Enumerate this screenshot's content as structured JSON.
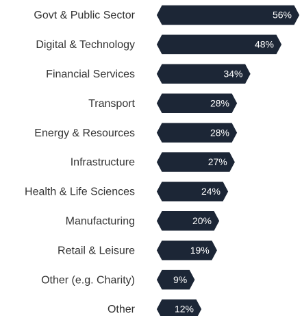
{
  "chart_data": {
    "type": "bar",
    "orientation": "horizontal",
    "color": "#1c2636",
    "categories": [
      "Govt & Public Sector",
      "Digital & Technology",
      "Financial Services",
      "Transport",
      "Energy & Resources",
      "Infrastructure",
      "Health & Life Sciences",
      "Manufacturing",
      "Retail & Leisure",
      "Other (e.g. Charity)",
      "Other"
    ],
    "values": [
      56,
      48,
      34,
      28,
      28,
      27,
      24,
      20,
      19,
      9,
      12
    ],
    "value_labels": [
      "56%",
      "48%",
      "34%",
      "28%",
      "28%",
      "27%",
      "24%",
      "20%",
      "19%",
      "9%",
      "12%"
    ]
  }
}
